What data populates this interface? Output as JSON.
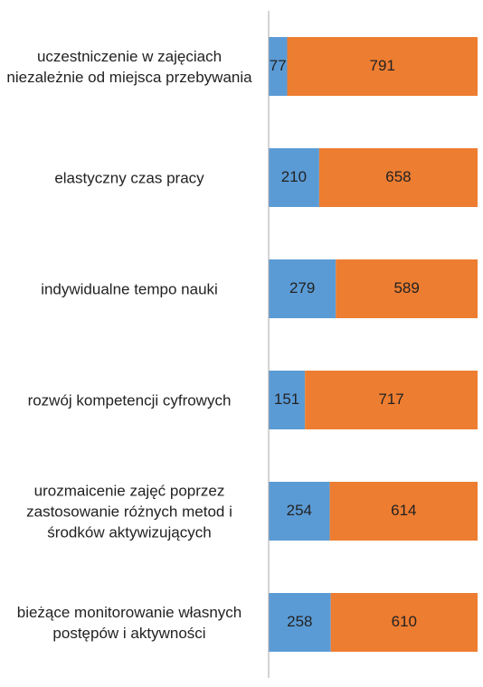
{
  "chart_data": {
    "type": "stacked-barh",
    "categories": [
      "uczestniczenie w zajęciach niezależnie od miejsca przebywania",
      "elastyczny czas pracy",
      "indywidualne tempo nauki",
      "rozwój kompetencji cyfrowych",
      "urozmaicenie zajęć poprzez zastosowanie różnych metod i środków aktywizujących",
      "bieżące monitorowanie własnych postępów i aktywności"
    ],
    "series": [
      {
        "color": "#5b9bd5",
        "values": [
          77,
          210,
          279,
          151,
          254,
          258
        ]
      },
      {
        "color": "#ed7d31",
        "values": [
          791,
          658,
          589,
          717,
          614,
          610
        ]
      }
    ],
    "xlim": [
      0,
      868
    ]
  }
}
